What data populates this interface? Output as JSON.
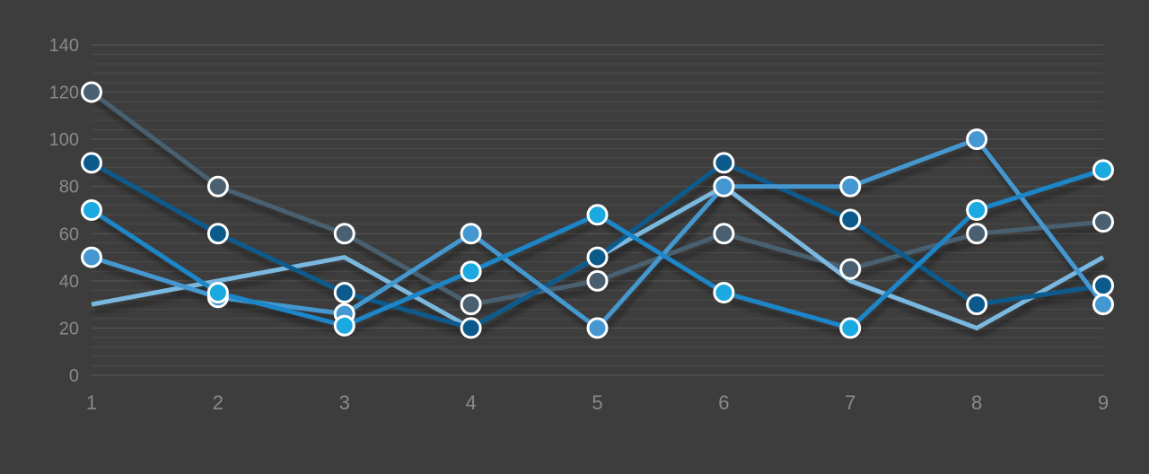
{
  "chart_data": {
    "type": "line",
    "title": "",
    "xlabel": "",
    "ylabel": "",
    "x": [
      1,
      2,
      3,
      4,
      5,
      6,
      7,
      8,
      9
    ],
    "ylim": [
      0,
      140
    ],
    "y_ticks": [
      0,
      20,
      40,
      60,
      80,
      100,
      120,
      140
    ],
    "grid": true,
    "legend": "none",
    "series": [
      {
        "color": "#4a6070",
        "values": [
          120,
          80,
          60,
          30,
          40,
          60,
          45,
          60,
          65
        ]
      },
      {
        "color": "#7ab8e0",
        "values": [
          30,
          40,
          50,
          20,
          50,
          80,
          40,
          20,
          50
        ]
      },
      {
        "color": "#0c5a8c",
        "values": [
          90,
          60,
          35,
          20,
          50,
          90,
          66,
          30,
          38
        ]
      },
      {
        "color": "#4497d0",
        "values": [
          50,
          33,
          26,
          60,
          20,
          80,
          80,
          100,
          30
        ]
      },
      {
        "color": "#1a86c8",
        "marker_color": "#1aa9e0",
        "values": [
          70,
          35,
          21,
          44,
          68,
          35,
          20,
          70,
          87
        ]
      }
    ],
    "series_markers": [
      true,
      false,
      true,
      true,
      true
    ]
  }
}
